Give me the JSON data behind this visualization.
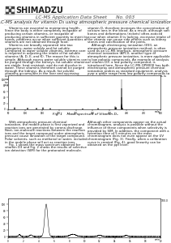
{
  "title_line": "LC-MS Application Data Sheet      No. 003",
  "main_title": "LC-MS analysis for vitamin D₃ using atmospheric pressure chemical ionization",
  "shimadzu_text": "SHIMADZU",
  "fig1_caption": "Fig. 1    Mass spectrum of Vitamin D₃",
  "fig2_ylabel_label": "100.0",
  "background_color": "#ffffff",
  "text_color": "#111111",
  "body_left_lines": [
    "    Vitamins are essential to maintaining health.",
    "Since the body is either completely incapable of",
    "producing certain vitamins, or incapable of",
    "producing vitamins in sufficient quantity to meet its",
    "needs, problems occur when sufficient quantities of",
    "vitamins are not obtained through food.",
    "    Vitamins are broadly separated into two",
    "categories: water soluble and fat soluble.",
    "Compared to water soluble vitamins, extreme care",
    "is required in adjusting the intake of fat soluble",
    "vitamins (A, D, E, and K). The reason for this is",
    "simple. Although excess water soluble vitamins can",
    "be purged through the kidneys, fat soluble vitamins",
    "are stable, heat resistant, and do not dissolve in",
    "water. These vitamins therefore cannot be purged",
    "through the kidneys. As a result, fat soluble",
    "vitamins accumulate in the liver and excessive",
    "levels of these vitamins can cause problems. For",
    "example, vitamin D promotes absorption of calcium",
    "ions from the intestines and re-absorption of",
    "calcium ions from bones and kidneys. The action of"
  ],
  "body_right_lines": [
    "vitamin D, therefore increases the concentration of",
    "calcium ions in the blood. As a result, although soft",
    "bones and deformations (rickets) often-noticed",
    "occur when vitamin D is lacking, excessive intake of",
    "the vitamin can cause side effects such as kidney",
    "stones and calcification of the joints.",
    "    Although electrospray ionization (ESI), an",
    "atmospheric pressure ionization method, is often",
    "used as an LC-MS interface, atmospheric pressure",
    "chemical ionization (APCI), another type of",
    "atmospheric pressure ionization, is more applicable",
    "to low polarity compounds. An example of analysis",
    "of vitamin D3, a low polarity compound, is",
    "introduced here. Since the LC-MS-QP8000 has both",
    "electrospray and atmospheric pressure chemical",
    "ionization probes as standard equipment, analysis",
    "over a wider range from low polarity compounds to",
    "high polarity compounds and ionic compounds is",
    "possible."
  ],
  "body_left2_lines": [
    "    With atmospheric pressure chemical",
    "ionization, the mobile phase is first vaporized and",
    "reaction ions are generated by corona discharge.",
    "Next, ion-molecule reactions between the reaction",
    "ions and the target compound under atmospheric",
    "pressure cause ionization of the target compound.",
    "Polar solvents, such as methanol or water, included",
    "in the mobile phase will act as reaction ions.",
    "    Fig. 1 shows the mass spectrum obtained for",
    "vitamin D3 and Fig. 2 shows the results of selective",
    "ion detection (SIM) for the protonated molecule."
  ],
  "body_right2_lines": [
    "Although other components appear on the actual",
    "chromatogram, analysis is possible without the",
    "influence of these components when selectivity is",
    "provided by SIM. In addition, the component with a",
    "retention time of 5 minutes on the mass",
    "chromatogram does not even appear on the UV",
    "chromatogram (Fig. 3). Finally, when a calibration",
    "curve is created (Fig. 4), good linearity can be",
    "obtained on the ppt level."
  ]
}
